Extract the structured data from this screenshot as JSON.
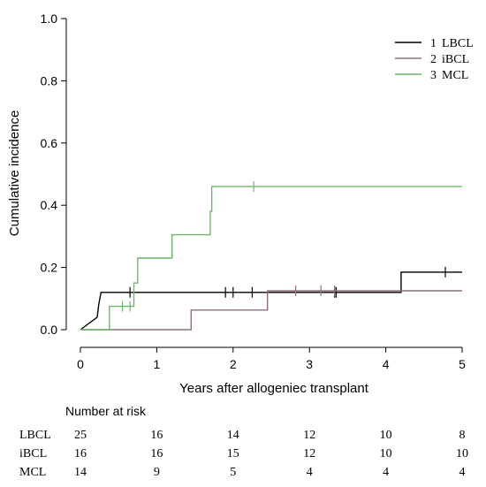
{
  "chart_data": {
    "type": "line",
    "subtype": "step",
    "ylabel": "Cumulative incidence",
    "xlabel": "Years after allogeniec transplant",
    "xlim": [
      0,
      5
    ],
    "ylim": [
      0,
      1.0
    ],
    "x_ticks": [
      "0",
      "1",
      "2",
      "3",
      "4",
      "5"
    ],
    "y_ticks": [
      "0.0",
      "0.2",
      "0.4",
      "0.6",
      "0.8",
      "1.0"
    ],
    "grid": false,
    "legend_position": "top-right",
    "series": [
      {
        "name": "LBCL",
        "legend_number": "1",
        "color": "#000000",
        "steps": [
          [
            0,
            0
          ],
          [
            0.22,
            0.04
          ],
          [
            0.24,
            0.08
          ],
          [
            0.27,
            0.12
          ],
          [
            4.2,
            0.12
          ],
          [
            4.2,
            0.185
          ],
          [
            5.0,
            0.185
          ]
        ],
        "censor_x": [
          0.65,
          1.9,
          2.0,
          2.25,
          3.33,
          3.35,
          4.78
        ]
      },
      {
        "name": "iBCL",
        "legend_number": "2",
        "color": "#8d6e7e",
        "steps": [
          [
            0,
            0
          ],
          [
            1.45,
            0
          ],
          [
            1.45,
            0.063
          ],
          [
            2.45,
            0.063
          ],
          [
            2.45,
            0.125
          ],
          [
            5.0,
            0.125
          ]
        ],
        "censor_x": [
          2.82,
          3.15,
          3.33
        ]
      },
      {
        "name": "MCL",
        "legend_number": "3",
        "color": "#6bb86b",
        "steps": [
          [
            0,
            0
          ],
          [
            0.38,
            0
          ],
          [
            0.38,
            0.075
          ],
          [
            0.7,
            0.075
          ],
          [
            0.7,
            0.15
          ],
          [
            0.75,
            0.15
          ],
          [
            0.75,
            0.23
          ],
          [
            1.2,
            0.23
          ],
          [
            1.2,
            0.305
          ],
          [
            1.7,
            0.305
          ],
          [
            1.7,
            0.38
          ],
          [
            1.72,
            0.38
          ],
          [
            1.72,
            0.46
          ],
          [
            5.0,
            0.46
          ]
        ],
        "censor_x": [
          0.55,
          0.65,
          2.27
        ]
      }
    ]
  },
  "risk_table": {
    "title": "Number at risk",
    "rows": [
      {
        "label": "LBCL",
        "values": [
          "25",
          "16",
          "14",
          "12",
          "10",
          "8"
        ]
      },
      {
        "label": "iBCL",
        "values": [
          "16",
          "16",
          "15",
          "12",
          "10",
          "10"
        ]
      },
      {
        "label": "MCL",
        "values": [
          "14",
          "9",
          "5",
          "4",
          "4",
          "4"
        ]
      }
    ]
  }
}
